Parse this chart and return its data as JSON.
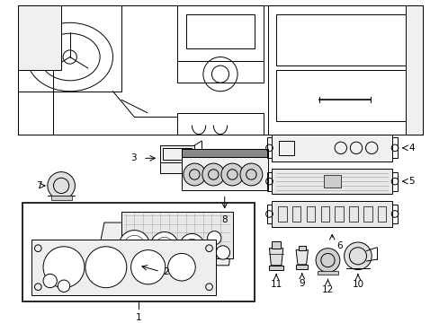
{
  "bg_color": "#ffffff",
  "line_color": "#000000",
  "fig_width": 4.89,
  "fig_height": 3.6,
  "dpi": 100,
  "text_fontsize": 7.5,
  "lw": 0.7
}
